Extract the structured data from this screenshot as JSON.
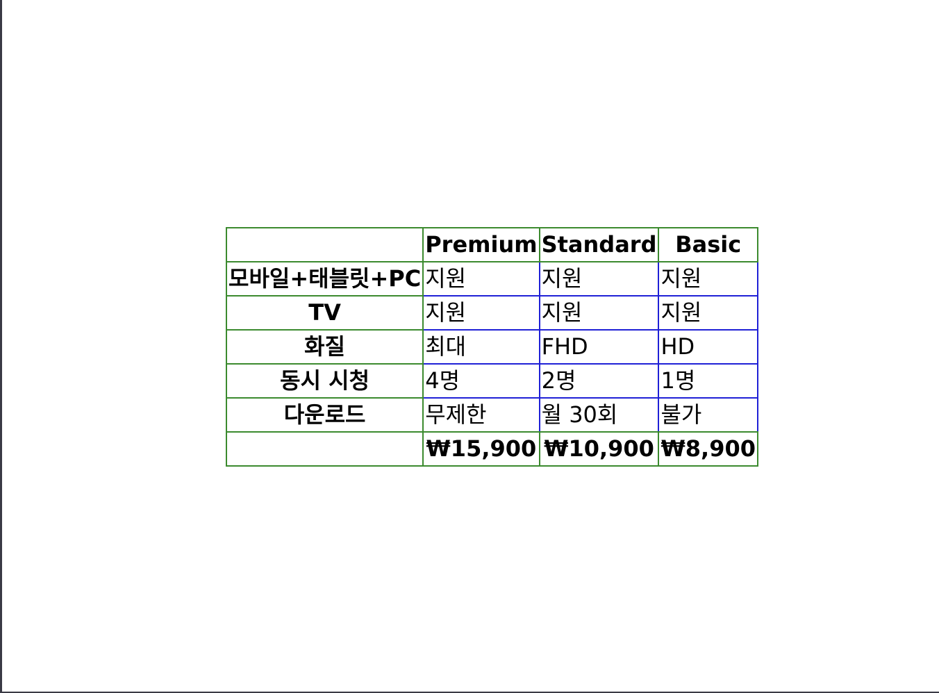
{
  "columns": [
    "Premium",
    "Standard",
    "Basic"
  ],
  "rows": [
    {
      "label": "모바일+태블릿+PC",
      "values": [
        "지원",
        "지원",
        "지원"
      ]
    },
    {
      "label": "TV",
      "values": [
        "지원",
        "지원",
        "지원"
      ]
    },
    {
      "label": "화질",
      "values": [
        "최대",
        "FHD",
        "HD"
      ]
    },
    {
      "label": "동시 시청",
      "values": [
        "4명",
        "2명",
        "1명"
      ]
    },
    {
      "label": "다운로드",
      "values": [
        "무제한",
        "월 30회",
        "불가"
      ]
    }
  ],
  "prices": [
    "₩15,900",
    "₩10,900",
    "₩8,900"
  ],
  "colors": {
    "header_border": "#3b8a2e",
    "cell_border": "#1f20d6",
    "background": "#ffffff"
  }
}
